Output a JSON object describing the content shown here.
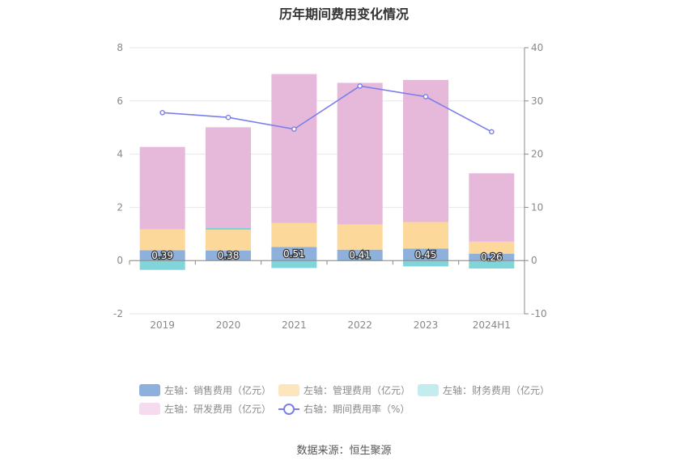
{
  "chart_data": {
    "type": "bar",
    "title": "历年期间费用变化情况",
    "categories": [
      "2019",
      "2020",
      "2021",
      "2022",
      "2023",
      "2024H1"
    ],
    "y_left": {
      "ylim": [
        -2,
        8
      ],
      "ticks": [
        "-2",
        "0",
        "2",
        "4",
        "6",
        "8"
      ]
    },
    "y_right": {
      "ylim": [
        -10,
        40
      ],
      "ticks": [
        "-10",
        "0",
        "10",
        "20",
        "30",
        "40"
      ]
    },
    "grid": true,
    "legend_position": "bottom",
    "series": [
      {
        "name": "左轴：销售费用（亿元）",
        "type": "bar",
        "axis": "left",
        "color": "#8eb0dc",
        "values": [
          0.39,
          0.38,
          0.51,
          0.41,
          0.45,
          0.26
        ],
        "labels": [
          "0.39",
          "0.38",
          "0.51",
          "0.41",
          "0.45",
          "0.26"
        ]
      },
      {
        "name": "左轴：管理费用（亿元）",
        "type": "bar",
        "axis": "left",
        "color": "#fdd89b",
        "values": [
          0.78,
          0.78,
          0.9,
          0.95,
          1.0,
          0.45
        ]
      },
      {
        "name": "左轴：财务费用（亿元）",
        "type": "bar",
        "axis": "left",
        "color": "#7fd5d9",
        "values": [
          -0.35,
          0.08,
          -0.28,
          -0.02,
          -0.22,
          -0.3
        ]
      },
      {
        "name": "左轴：研发费用（亿元）",
        "type": "bar",
        "axis": "left",
        "color": "#e6b9db",
        "values": [
          3.1,
          3.77,
          5.6,
          5.32,
          5.34,
          2.57
        ]
      },
      {
        "name": "右轴：期间费用率（%）",
        "type": "line",
        "axis": "right",
        "color": "#7b7fea",
        "values": [
          27.8,
          26.9,
          24.7,
          32.8,
          30.8,
          24.2
        ]
      }
    ],
    "source": "数据来源：恒生聚源"
  }
}
